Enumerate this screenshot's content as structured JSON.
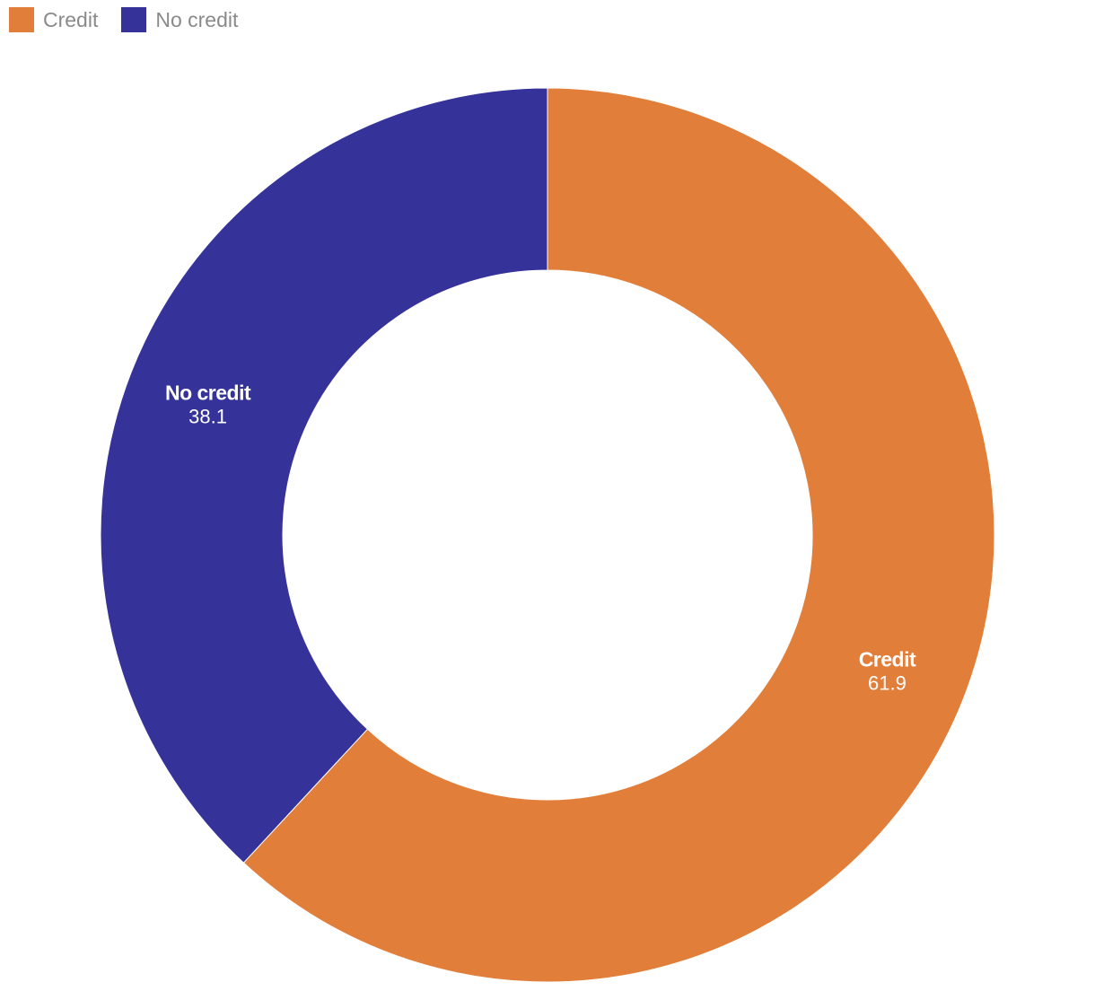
{
  "chart_data": {
    "type": "pie",
    "variant": "donut",
    "categories": [
      "Credit",
      "No credit"
    ],
    "values": [
      61.9,
      38.1
    ],
    "colors": [
      "#e17e39",
      "#353399"
    ],
    "value_labels": [
      "61.9",
      "38.1"
    ],
    "legend_position": "top-left",
    "title": ""
  },
  "legend": {
    "items": [
      {
        "label": "Credit",
        "color": "#e17e39"
      },
      {
        "label": "No credit",
        "color": "#353399"
      }
    ]
  }
}
